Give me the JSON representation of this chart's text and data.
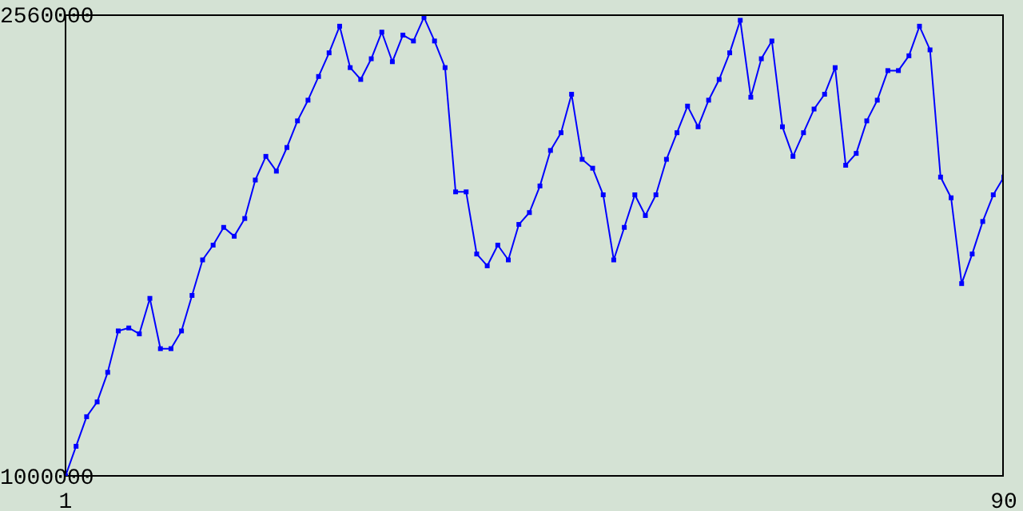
{
  "chart_data": {
    "type": "line",
    "x": [
      1,
      2,
      3,
      4,
      5,
      6,
      7,
      8,
      9,
      10,
      11,
      12,
      13,
      14,
      15,
      16,
      17,
      18,
      19,
      20,
      21,
      22,
      23,
      24,
      25,
      26,
      27,
      28,
      29,
      30,
      31,
      32,
      33,
      34,
      35,
      36,
      37,
      38,
      39,
      40,
      41,
      42,
      43,
      44,
      45,
      46,
      47,
      48,
      49,
      50,
      51,
      52,
      53,
      54,
      55,
      56,
      57,
      58,
      59,
      60,
      61,
      62,
      63,
      64,
      65,
      66,
      67,
      68,
      69,
      70,
      71,
      72,
      73,
      74,
      75,
      76,
      77,
      78,
      79,
      80,
      81,
      82,
      83,
      84,
      85,
      86,
      87,
      88,
      89,
      90
    ],
    "series": [
      {
        "color": "#0000ff",
        "values": [
          1000000,
          1100000,
          1200000,
          1250000,
          1350000,
          1490000,
          1500000,
          1480000,
          1600000,
          1430000,
          1430000,
          1490000,
          1610000,
          1730000,
          1780000,
          1840000,
          1810000,
          1870000,
          2000000,
          2080000,
          2030000,
          2110000,
          2200000,
          2270000,
          2350000,
          2430000,
          2520000,
          2380000,
          2340000,
          2410000,
          2500000,
          2400000,
          2490000,
          2470000,
          2550000,
          2470000,
          2380000,
          1960000,
          1960000,
          1750000,
          1710000,
          1780000,
          1730000,
          1850000,
          1890000,
          1980000,
          2100000,
          2160000,
          2290000,
          2070000,
          2040000,
          1950000,
          1730000,
          1840000,
          1950000,
          1880000,
          1950000,
          2070000,
          2160000,
          2250000,
          2180000,
          2270000,
          2340000,
          2430000,
          2540000,
          2280000,
          2410000,
          2470000,
          2180000,
          2080000,
          2160000,
          2240000,
          2290000,
          2380000,
          2050000,
          2090000,
          2200000,
          2270000,
          2370000,
          2370000,
          2420000,
          2520000,
          2440000,
          2010000,
          1940000,
          1650000,
          1750000,
          1860000,
          1950000,
          2010000
        ]
      }
    ],
    "xlim": [
      1,
      90
    ],
    "xticks": [
      1,
      90
    ],
    "ylim": [
      1000000,
      2560000
    ],
    "yticks": [
      1000000,
      2560000
    ],
    "marker": "square",
    "line_style": "solid",
    "grid": false
  }
}
